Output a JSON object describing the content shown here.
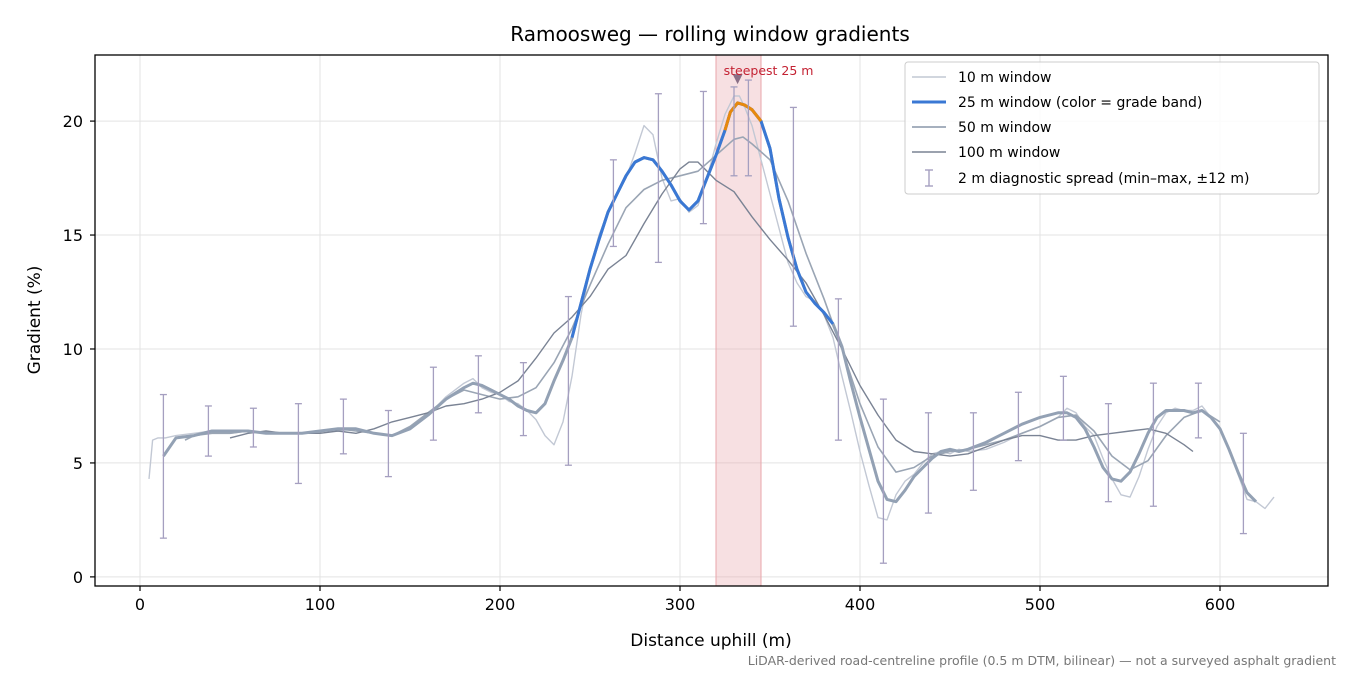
{
  "chart_data": {
    "type": "line",
    "title": "Ramoosweg — rolling window gradients",
    "xlabel": "Distance uphill (m)",
    "ylabel": "Gradient (%)",
    "xlim": [
      -25,
      660
    ],
    "ylim": [
      -0.4,
      22.9
    ],
    "xticks": [
      0,
      100,
      200,
      300,
      400,
      500,
      600
    ],
    "yticks": [
      0,
      5,
      10,
      15,
      20
    ],
    "grid": true,
    "legend_position": "top-right",
    "footnote": "LiDAR-derived road-centreline profile (0.5 m DTM, bilinear) — not a surveyed asphalt gradient",
    "highlight": {
      "label": "steepest 25 m",
      "x_range": [
        320,
        345
      ],
      "marker_x": 332,
      "marker_y": 21.8,
      "color": "#d95f6a"
    },
    "colors": {
      "w10": "#c2c8d4",
      "w25_base": "#93a1b4",
      "w25_band_blue": "#3a78d4",
      "w25_band_orange": "#e8890c",
      "w50": "#9aa5b4",
      "w100": "#7a8394",
      "errorbar": "#a59fc0",
      "highlight": "#e8a6ab"
    },
    "series": [
      {
        "name": "10 m window",
        "x": [
          5,
          7,
          10,
          14,
          20,
          30,
          40,
          50,
          60,
          70,
          80,
          90,
          100,
          110,
          120,
          130,
          140,
          150,
          160,
          170,
          180,
          185,
          190,
          195,
          200,
          205,
          210,
          215,
          220,
          225,
          230,
          235,
          240,
          245,
          250,
          255,
          260,
          265,
          270,
          275,
          280,
          285,
          290,
          295,
          300,
          305,
          310,
          315,
          320,
          325,
          330,
          333,
          336,
          340,
          345,
          350,
          355,
          360,
          365,
          370,
          375,
          380,
          385,
          390,
          395,
          400,
          405,
          410,
          415,
          420,
          425,
          430,
          435,
          440,
          445,
          450,
          455,
          460,
          470,
          480,
          490,
          500,
          510,
          515,
          520,
          525,
          530,
          535,
          540,
          545,
          550,
          555,
          560,
          565,
          570,
          575,
          580,
          585,
          590,
          595,
          600,
          605,
          610,
          615,
          620,
          625,
          630
        ],
        "y": [
          4.3,
          6.0,
          6.1,
          6.1,
          6.2,
          6.3,
          6.4,
          6.3,
          6.4,
          6.3,
          6.3,
          6.3,
          6.4,
          6.4,
          6.5,
          6.3,
          6.2,
          6.6,
          7.1,
          7.9,
          8.5,
          8.7,
          8.3,
          8.1,
          8.0,
          7.7,
          7.6,
          7.3,
          6.9,
          6.2,
          5.8,
          6.8,
          8.8,
          11.5,
          13.5,
          15.0,
          16.0,
          16.8,
          17.5,
          18.6,
          19.8,
          19.4,
          17.5,
          16.5,
          16.6,
          16.0,
          16.3,
          17.5,
          19.0,
          20.3,
          21.1,
          21.1,
          20.6,
          19.8,
          18.3,
          16.8,
          15.3,
          13.8,
          12.9,
          12.3,
          12.1,
          11.5,
          10.5,
          8.8,
          7.2,
          5.5,
          4.0,
          2.6,
          2.5,
          3.6,
          4.2,
          4.5,
          5.0,
          5.4,
          5.5,
          5.4,
          5.6,
          5.5,
          5.6,
          5.9,
          6.3,
          6.6,
          7.0,
          7.4,
          7.2,
          6.6,
          6.2,
          5.2,
          4.3,
          3.6,
          3.5,
          4.4,
          5.6,
          6.6,
          7.2,
          7.4,
          7.3,
          7.3,
          7.5,
          7.0,
          6.5,
          5.6,
          4.5,
          3.4,
          3.3,
          3.0,
          3.5
        ]
      },
      {
        "name": "25 m window (color = grade band)",
        "x": [
          13,
          20,
          30,
          40,
          50,
          60,
          70,
          80,
          90,
          100,
          110,
          120,
          130,
          140,
          150,
          160,
          170,
          180,
          185,
          190,
          195,
          200,
          205,
          210,
          215,
          220,
          225,
          230,
          235,
          240,
          245,
          250,
          255,
          260,
          265,
          270,
          275,
          280,
          285,
          290,
          295,
          300,
          305,
          310,
          315,
          320,
          325,
          328,
          332,
          336,
          340,
          345,
          350,
          355,
          360,
          365,
          370,
          375,
          380,
          385,
          390,
          395,
          400,
          405,
          410,
          415,
          420,
          425,
          430,
          435,
          440,
          445,
          450,
          455,
          460,
          470,
          480,
          490,
          500,
          510,
          515,
          520,
          525,
          530,
          535,
          540,
          545,
          550,
          555,
          560,
          565,
          570,
          575,
          580,
          585,
          590,
          595,
          600,
          605,
          610,
          615,
          620
        ],
        "y": [
          5.3,
          6.1,
          6.2,
          6.4,
          6.4,
          6.4,
          6.3,
          6.3,
          6.3,
          6.4,
          6.5,
          6.5,
          6.3,
          6.2,
          6.5,
          7.1,
          7.8,
          8.3,
          8.5,
          8.4,
          8.2,
          8.0,
          7.8,
          7.5,
          7.3,
          7.2,
          7.6,
          8.6,
          9.5,
          10.5,
          12.0,
          13.5,
          14.8,
          16.0,
          16.8,
          17.6,
          18.2,
          18.4,
          18.3,
          17.8,
          17.2,
          16.5,
          16.1,
          16.5,
          17.5,
          18.5,
          19.6,
          20.4,
          20.8,
          20.7,
          20.5,
          20.0,
          18.8,
          16.6,
          14.9,
          13.5,
          12.5,
          12.0,
          11.6,
          11.1,
          10.1,
          8.5,
          7.0,
          5.6,
          4.2,
          3.4,
          3.3,
          3.8,
          4.4,
          4.8,
          5.2,
          5.5,
          5.6,
          5.5,
          5.6,
          5.9,
          6.3,
          6.7,
          7.0,
          7.2,
          7.2,
          7.0,
          6.5,
          5.7,
          4.8,
          4.3,
          4.2,
          4.6,
          5.4,
          6.3,
          7.0,
          7.3,
          7.3,
          7.3,
          7.2,
          7.3,
          7.0,
          6.5,
          5.6,
          4.6,
          3.7,
          3.3
        ],
        "band_x_range_blue": [
          240,
          388
        ],
        "band_x_range_orange": [
          325,
          345
        ]
      },
      {
        "name": "50 m window",
        "x": [
          25,
          30,
          40,
          50,
          60,
          70,
          80,
          90,
          100,
          110,
          120,
          130,
          140,
          150,
          160,
          170,
          180,
          190,
          200,
          210,
          220,
          230,
          240,
          250,
          260,
          270,
          280,
          290,
          300,
          310,
          320,
          330,
          335,
          340,
          350,
          360,
          370,
          380,
          390,
          400,
          410,
          420,
          430,
          440,
          450,
          460,
          470,
          480,
          490,
          500,
          510,
          520,
          530,
          540,
          550,
          560,
          570,
          580,
          590,
          600
        ],
        "y": [
          6.0,
          6.2,
          6.3,
          6.3,
          6.4,
          6.3,
          6.3,
          6.3,
          6.4,
          6.5,
          6.4,
          6.3,
          6.2,
          6.6,
          7.2,
          7.8,
          8.2,
          8.0,
          7.8,
          7.9,
          8.3,
          9.4,
          10.9,
          12.8,
          14.6,
          16.2,
          17.0,
          17.4,
          17.6,
          17.8,
          18.5,
          19.2,
          19.3,
          19.0,
          18.3,
          16.5,
          14.2,
          12.2,
          10.0,
          7.6,
          5.7,
          4.6,
          4.8,
          5.3,
          5.5,
          5.6,
          5.8,
          6.0,
          6.3,
          6.6,
          7.0,
          7.1,
          6.4,
          5.3,
          4.7,
          5.1,
          6.2,
          7.0,
          7.3,
          6.8
        ]
      },
      {
        "name": "100 m window",
        "x": [
          50,
          60,
          70,
          80,
          90,
          100,
          110,
          120,
          130,
          140,
          150,
          160,
          170,
          180,
          190,
          200,
          210,
          220,
          230,
          240,
          250,
          260,
          270,
          280,
          290,
          300,
          305,
          310,
          320,
          330,
          340,
          350,
          360,
          370,
          380,
          390,
          400,
          410,
          420,
          430,
          440,
          450,
          460,
          470,
          480,
          490,
          500,
          510,
          520,
          530,
          540,
          550,
          560,
          570,
          580,
          585
        ],
        "y": [
          6.1,
          6.3,
          6.4,
          6.3,
          6.3,
          6.3,
          6.4,
          6.3,
          6.5,
          6.8,
          7.0,
          7.2,
          7.5,
          7.6,
          7.8,
          8.1,
          8.6,
          9.6,
          10.7,
          11.4,
          12.3,
          13.5,
          14.1,
          15.5,
          16.8,
          17.9,
          18.2,
          18.2,
          17.4,
          16.9,
          15.8,
          14.8,
          13.9,
          12.9,
          11.5,
          10.0,
          8.4,
          7.1,
          6.0,
          5.5,
          5.4,
          5.3,
          5.4,
          5.7,
          6.0,
          6.2,
          6.2,
          6.0,
          6.0,
          6.2,
          6.3,
          6.4,
          6.5,
          6.3,
          5.8,
          5.5
        ]
      }
    ],
    "error_bars": {
      "name": "2 m diagnostic spread (min–max, ±12 m)",
      "points": [
        {
          "x": 13,
          "min": 1.7,
          "max": 8.0
        },
        {
          "x": 38,
          "min": 5.3,
          "max": 7.5
        },
        {
          "x": 63,
          "min": 5.7,
          "max": 7.4
        },
        {
          "x": 88,
          "min": 4.1,
          "max": 7.6
        },
        {
          "x": 113,
          "min": 5.4,
          "max": 7.8
        },
        {
          "x": 138,
          "min": 4.4,
          "max": 7.3
        },
        {
          "x": 163,
          "min": 6.0,
          "max": 9.2
        },
        {
          "x": 188,
          "min": 7.2,
          "max": 9.7
        },
        {
          "x": 213,
          "min": 6.2,
          "max": 9.4
        },
        {
          "x": 238,
          "min": 4.9,
          "max": 12.3
        },
        {
          "x": 263,
          "min": 14.5,
          "max": 18.3
        },
        {
          "x": 288,
          "min": 13.8,
          "max": 21.2
        },
        {
          "x": 313,
          "min": 15.5,
          "max": 21.3
        },
        {
          "x": 330,
          "min": 17.6,
          "max": 21.5
        },
        {
          "x": 338,
          "min": 17.6,
          "max": 21.8
        },
        {
          "x": 363,
          "min": 11.0,
          "max": 20.6
        },
        {
          "x": 388,
          "min": 6.0,
          "max": 12.2
        },
        {
          "x": 413,
          "min": 0.6,
          "max": 7.8
        },
        {
          "x": 438,
          "min": 2.8,
          "max": 7.2
        },
        {
          "x": 463,
          "min": 3.8,
          "max": 7.2
        },
        {
          "x": 488,
          "min": 5.1,
          "max": 8.1
        },
        {
          "x": 513,
          "min": 6.0,
          "max": 8.8
        },
        {
          "x": 538,
          "min": 3.3,
          "max": 7.6
        },
        {
          "x": 563,
          "min": 3.1,
          "max": 8.5
        },
        {
          "x": 588,
          "min": 6.1,
          "max": 8.5
        },
        {
          "x": 613,
          "min": 1.9,
          "max": 6.3
        }
      ]
    }
  }
}
